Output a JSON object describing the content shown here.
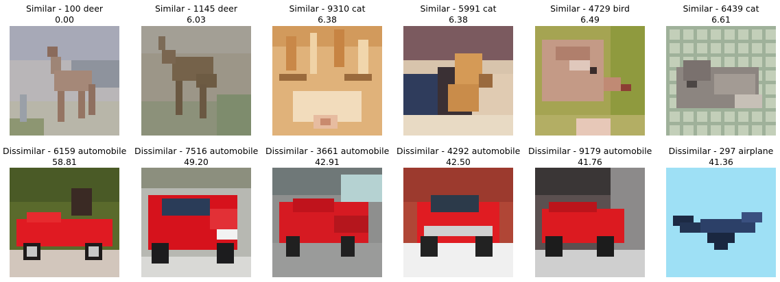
{
  "similar": [
    {
      "label": "Similar - 100 deer",
      "score": "0.00",
      "icon": "deer-thumbnail"
    },
    {
      "label": "Similar - 1145 deer",
      "score": "6.03",
      "icon": "deer-thumbnail"
    },
    {
      "label": "Similar - 9310 cat",
      "score": "6.38",
      "icon": "cat-face-thumbnail"
    },
    {
      "label": "Similar - 5991 cat",
      "score": "6.38",
      "icon": "cat-thumbnail"
    },
    {
      "label": "Similar - 4729 bird",
      "score": "6.49",
      "icon": "bird-thumbnail"
    },
    {
      "label": "Similar - 6439 cat",
      "score": "6.61",
      "icon": "cat-thumbnail"
    }
  ],
  "dissimilar": [
    {
      "label": "Dissimilar - 6159 automobile",
      "score": "58.81",
      "icon": "red-car-thumbnail"
    },
    {
      "label": "Dissimilar - 7516 automobile",
      "score": "49.20",
      "icon": "red-car-thumbnail"
    },
    {
      "label": "Dissimilar - 3661 automobile",
      "score": "42.91",
      "icon": "red-car-thumbnail"
    },
    {
      "label": "Dissimilar - 4292 automobile",
      "score": "42.50",
      "icon": "red-car-thumbnail"
    },
    {
      "label": "Dissimilar - 9179 automobile",
      "score": "41.76",
      "icon": "red-car-thumbnail"
    },
    {
      "label": "Dissimilar - 297 airplane",
      "score": "41.36",
      "icon": "airplane-thumbnail"
    }
  ]
}
